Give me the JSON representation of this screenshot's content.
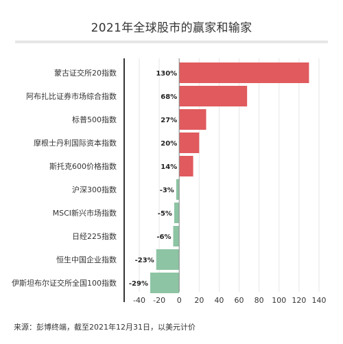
{
  "title": "2021年全球股市的赢家和输家",
  "source": "来源：彭博终端，截至2021年12月31日，以美元计价",
  "colors": {
    "positive": "#e05a5e",
    "negative": "#8dc4a3",
    "grid": "#e6e6e6",
    "axis": "#333333",
    "text": "#333333"
  },
  "chart_data": {
    "type": "bar",
    "orientation": "horizontal",
    "categories": [
      "蒙古证交所20指数",
      "阿布扎比证券市场综合指数",
      "标普500指数",
      "摩根士丹利国际资本指数",
      "斯托克600价格指数",
      "沪深300指数",
      "MSCI新兴市场指数",
      "日经225指数",
      "恒生中国企业指数",
      "伊斯坦布尔证交所全国100指数"
    ],
    "values": [
      130,
      68,
      27,
      20,
      14,
      -3,
      -5,
      -6,
      -23,
      -29
    ],
    "data_labels": [
      "130%",
      "68%",
      "27%",
      "20%",
      "14%",
      "-3%",
      "-5%",
      "-6%",
      "-23%",
      "-29%"
    ],
    "xlim": [
      -40,
      140
    ],
    "xticks": [
      -40,
      -20,
      0,
      20,
      40,
      60,
      80,
      100,
      120,
      140
    ],
    "xtick_labels": [
      "-40",
      "-20",
      "0",
      "20",
      "40",
      "60",
      "80",
      "100",
      "120",
      "140"
    ],
    "grid": true
  }
}
